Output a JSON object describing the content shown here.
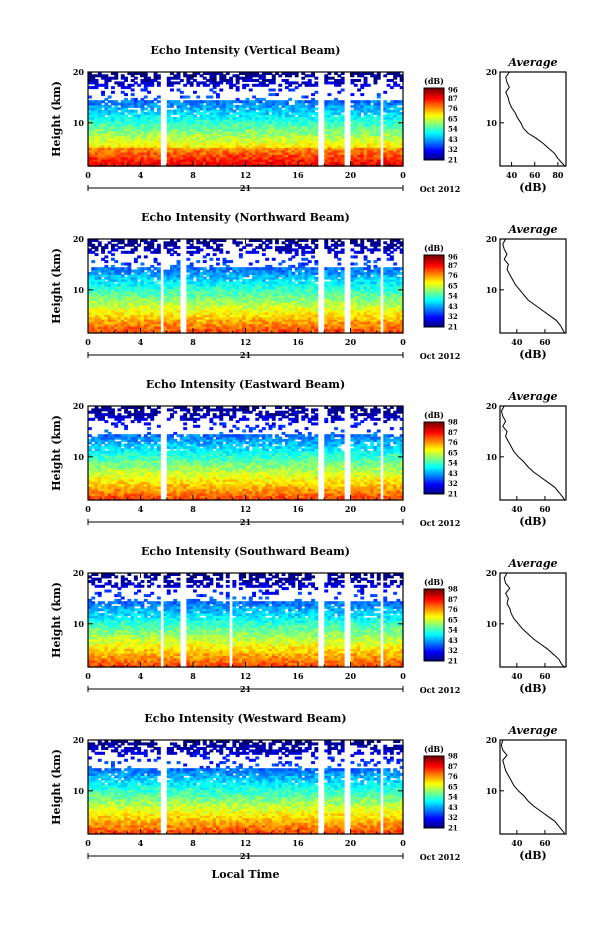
{
  "figure": {
    "x_axis_label": "Local Time",
    "day_label": "21",
    "month_label": "Oct 2012",
    "avg_title": "Average",
    "avg_xlabel": "(dB)",
    "colorbar_unit": "(dB)"
  },
  "chart_data": [
    {
      "type": "heatmap",
      "title": "Echo Intensity (Vertical Beam)",
      "ylabel": "Height (km)",
      "xticks": [
        "0",
        "4",
        "8",
        "12",
        "16",
        "20",
        "0"
      ],
      "yticks": [
        "10",
        "20"
      ],
      "xlim": [
        0,
        24
      ],
      "ylim": [
        1.5,
        20
      ],
      "gaps_hours": [
        [
          0.9,
          1.1
        ],
        [
          5.6,
          5.9
        ],
        [
          17.6,
          18.0
        ],
        [
          19.6,
          19.9
        ],
        [
          22.3,
          22.6
        ]
      ],
      "colorbar_ticks": [
        "96",
        "87",
        "76",
        "65",
        "54",
        "43",
        "32",
        "21"
      ],
      "colorbar_range": [
        21,
        98
      ],
      "avg_xticks": [
        "40",
        "60",
        "80"
      ],
      "avg_xlim": [
        30,
        87
      ],
      "avg_profile": [
        [
          1.5,
          86
        ],
        [
          2,
          84
        ],
        [
          3,
          80
        ],
        [
          4,
          77
        ],
        [
          5,
          72
        ],
        [
          6,
          67
        ],
        [
          7,
          61
        ],
        [
          8,
          54
        ],
        [
          9,
          50
        ],
        [
          10,
          48
        ],
        [
          11,
          45
        ],
        [
          12,
          43
        ],
        [
          13,
          40
        ],
        [
          14,
          38
        ],
        [
          15,
          37
        ],
        [
          16,
          35
        ],
        [
          17,
          38
        ],
        [
          18,
          36
        ],
        [
          19,
          35
        ],
        [
          20,
          38
        ]
      ]
    },
    {
      "type": "heatmap",
      "title": "Echo Intensity (Northward Beam)",
      "ylabel": "Height (km)",
      "xticks": [
        "0",
        "4",
        "8",
        "12",
        "16",
        "20",
        "0"
      ],
      "yticks": [
        "10",
        "20"
      ],
      "xlim": [
        0,
        24
      ],
      "ylim": [
        1.5,
        20
      ],
      "gaps_hours": [
        [
          0.9,
          1.1
        ],
        [
          5.6,
          5.8
        ],
        [
          7.0,
          7.6
        ],
        [
          17.6,
          18.0
        ],
        [
          19.6,
          19.9
        ],
        [
          22.3,
          22.6
        ]
      ],
      "colorbar_ticks": [
        "96",
        "87",
        "76",
        "65",
        "54",
        "43",
        "32",
        "21"
      ],
      "colorbar_range": [
        21,
        98
      ],
      "avg_xticks": [
        "40",
        "60"
      ],
      "avg_xlim": [
        28,
        75
      ],
      "avg_profile": [
        [
          1.5,
          74
        ],
        [
          2,
          73
        ],
        [
          3,
          71
        ],
        [
          4,
          68
        ],
        [
          5,
          63
        ],
        [
          6,
          58
        ],
        [
          7,
          53
        ],
        [
          8,
          48
        ],
        [
          9,
          45
        ],
        [
          10,
          42
        ],
        [
          11,
          39
        ],
        [
          12,
          37
        ],
        [
          13,
          35
        ],
        [
          14,
          33
        ],
        [
          15,
          34
        ],
        [
          16,
          31
        ],
        [
          17,
          33
        ],
        [
          18,
          31
        ],
        [
          19,
          30
        ],
        [
          20,
          32
        ]
      ]
    },
    {
      "type": "heatmap",
      "title": "Echo Intensity (Eastward Beam)",
      "ylabel": "Height (km)",
      "xticks": [
        "0",
        "4",
        "8",
        "12",
        "16",
        "20",
        "0"
      ],
      "yticks": [
        "10",
        "20"
      ],
      "xlim": [
        0,
        24
      ],
      "ylim": [
        1.5,
        20
      ],
      "gaps_hours": [
        [
          0.9,
          1.1
        ],
        [
          5.6,
          5.9
        ],
        [
          17.6,
          18.0
        ],
        [
          19.6,
          19.9
        ],
        [
          22.3,
          22.6
        ]
      ],
      "colorbar_ticks": [
        "98",
        "87",
        "76",
        "65",
        "54",
        "43",
        "32",
        "21"
      ],
      "colorbar_range": [
        21,
        98
      ],
      "avg_xticks": [
        "40",
        "60"
      ],
      "avg_xlim": [
        28,
        75
      ],
      "avg_profile": [
        [
          1.5,
          74
        ],
        [
          2,
          73
        ],
        [
          3,
          70
        ],
        [
          4,
          67
        ],
        [
          5,
          62
        ],
        [
          6,
          57
        ],
        [
          7,
          52
        ],
        [
          8,
          48
        ],
        [
          9,
          45
        ],
        [
          10,
          41
        ],
        [
          11,
          38
        ],
        [
          12,
          36
        ],
        [
          13,
          34
        ],
        [
          14,
          32
        ],
        [
          15,
          33
        ],
        [
          16,
          30
        ],
        [
          17,
          32
        ],
        [
          18,
          30
        ],
        [
          19,
          29
        ],
        [
          20,
          31
        ]
      ]
    },
    {
      "type": "heatmap",
      "title": "Echo Intensity (Southward Beam)",
      "ylabel": "Height (km)",
      "xticks": [
        "0",
        "4",
        "8",
        "12",
        "16",
        "20",
        "0"
      ],
      "yticks": [
        "10",
        "20"
      ],
      "xlim": [
        0,
        24
      ],
      "ylim": [
        1.5,
        20
      ],
      "gaps_hours": [
        [
          0.9,
          1.1
        ],
        [
          5.6,
          5.8
        ],
        [
          7.0,
          7.6
        ],
        [
          10.8,
          11.0
        ],
        [
          17.6,
          18.0
        ],
        [
          19.6,
          19.9
        ],
        [
          22.3,
          22.6
        ]
      ],
      "colorbar_ticks": [
        "98",
        "87",
        "76",
        "65",
        "54",
        "43",
        "32",
        "21"
      ],
      "colorbar_range": [
        21,
        98
      ],
      "avg_xticks": [
        "40",
        "60"
      ],
      "avg_xlim": [
        28,
        75
      ],
      "avg_profile": [
        [
          1.5,
          74
        ],
        [
          2,
          72
        ],
        [
          3,
          70
        ],
        [
          4,
          66
        ],
        [
          5,
          62
        ],
        [
          6,
          57
        ],
        [
          7,
          52
        ],
        [
          8,
          48
        ],
        [
          9,
          44
        ],
        [
          10,
          41
        ],
        [
          11,
          38
        ],
        [
          12,
          36
        ],
        [
          13,
          35
        ],
        [
          14,
          33
        ],
        [
          15,
          34
        ],
        [
          16,
          32
        ],
        [
          17,
          35
        ],
        [
          18,
          32
        ],
        [
          19,
          31
        ],
        [
          20,
          33
        ]
      ]
    },
    {
      "type": "heatmap",
      "title": "Echo Intensity (Westward Beam)",
      "ylabel": "Height (km)",
      "xticks": [
        "0",
        "4",
        "8",
        "12",
        "16",
        "20",
        "0"
      ],
      "yticks": [
        "10",
        "20"
      ],
      "xlim": [
        0,
        24
      ],
      "ylim": [
        1.5,
        20
      ],
      "gaps_hours": [
        [
          0.9,
          1.1
        ],
        [
          5.6,
          5.9
        ],
        [
          17.6,
          18.0
        ],
        [
          19.6,
          19.9
        ],
        [
          22.3,
          22.6
        ]
      ],
      "colorbar_ticks": [
        "98",
        "87",
        "76",
        "65",
        "54",
        "43",
        "32",
        "21"
      ],
      "colorbar_range": [
        21,
        98
      ],
      "avg_xticks": [
        "40",
        "60"
      ],
      "avg_xlim": [
        28,
        75
      ],
      "avg_profile": [
        [
          1.5,
          74
        ],
        [
          2,
          73
        ],
        [
          3,
          70
        ],
        [
          4,
          67
        ],
        [
          5,
          62
        ],
        [
          6,
          57
        ],
        [
          7,
          52
        ],
        [
          8,
          48
        ],
        [
          9,
          45
        ],
        [
          10,
          41
        ],
        [
          11,
          38
        ],
        [
          12,
          36
        ],
        [
          13,
          34
        ],
        [
          14,
          32
        ],
        [
          15,
          31
        ],
        [
          16,
          30
        ],
        [
          17,
          33
        ],
        [
          18,
          30
        ],
        [
          19,
          29
        ],
        [
          20,
          30
        ]
      ]
    }
  ]
}
